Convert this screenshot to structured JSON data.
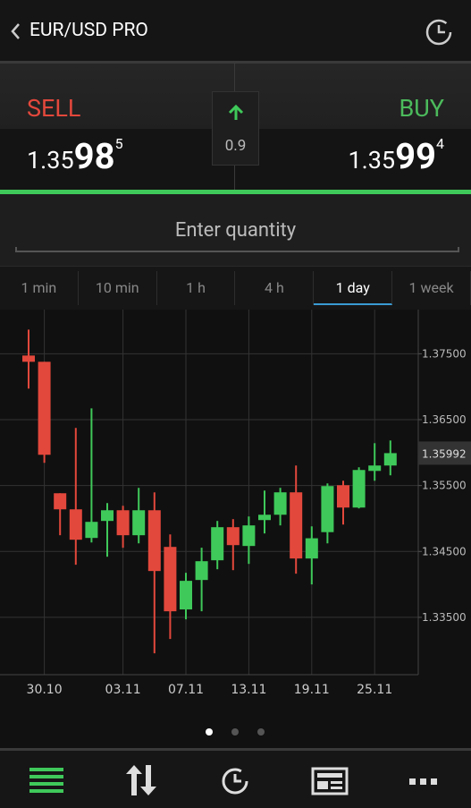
{
  "header": {
    "title": "EUR/USD PRO"
  },
  "quote": {
    "sell": {
      "label": "SELL",
      "price_prefix": "1.35",
      "price_big": "98",
      "price_sup": "5"
    },
    "buy": {
      "label": "BUY",
      "price_prefix": "1.35",
      "price_big": "99",
      "price_sup": "4"
    },
    "spread": "0.9"
  },
  "quantity": {
    "placeholder": "Enter quantity"
  },
  "tabs": {
    "items": [
      "1 min",
      "10 min",
      "1 h",
      "4 h",
      "1 day",
      "1 week"
    ],
    "active": 4
  },
  "chart_data": {
    "type": "candlestick",
    "categories": [
      null,
      "30.10",
      null,
      null,
      null,
      null,
      "03.11",
      null,
      null,
      null,
      "07.11",
      null,
      null,
      null,
      "13.11",
      null,
      null,
      null,
      "19.11",
      null,
      null,
      null,
      "25.11",
      null
    ],
    "open": [
      1.37473,
      1.37378,
      1.35383,
      1.35139,
      1.34705,
      1.34963,
      1.35125,
      1.34746,
      1.35125,
      1.34569,
      1.3362,
      1.34067,
      1.34366,
      1.34868,
      1.34583,
      1.34976,
      1.35057,
      1.35397,
      1.34393,
      1.34793,
      1.35505,
      1.35166,
      1.35722,
      1.35804
    ],
    "high": [
      1.37866,
      1.37378,
      1.35383,
      1.36374,
      1.36672,
      1.35234,
      1.35193,
      1.35465,
      1.35397,
      1.34759,
      1.34176,
      1.34556,
      1.34963,
      1.3499,
      1.35031,
      1.35424,
      1.35465,
      1.35804,
      1.34881,
      1.35533,
      1.35573,
      1.35777,
      1.36143,
      1.36184
    ],
    "low": [
      1.36971,
      1.35845,
      1.34746,
      1.34298,
      1.34637,
      1.3442,
      1.34556,
      1.34623,
      1.32955,
      1.33172,
      1.3347,
      1.33592,
      1.3423,
      1.34216,
      1.34311,
      1.34773,
      1.34895,
      1.34162,
      1.34,
      1.34623,
      1.34908,
      1.35153,
      1.35573,
      1.35655
    ],
    "close": [
      1.37378,
      1.35967,
      1.35139,
      1.34678,
      1.34949,
      1.35125,
      1.34746,
      1.35125,
      1.34203,
      1.33592,
      1.34054,
      1.34352,
      1.34868,
      1.34596,
      1.34895,
      1.35057,
      1.35397,
      1.34393,
      1.347,
      1.35492,
      1.35166,
      1.35736,
      1.35804,
      1.35992
    ],
    "up_color": "#3fc95a",
    "down_color": "#e3483c",
    "ylim": [
      1.3263,
      1.3817
    ],
    "yticks": [
      {
        "value": 1.335,
        "label": "1.33500"
      },
      {
        "value": 1.345,
        "label": "1.34500"
      },
      {
        "value": 1.355,
        "label": "1.35500"
      },
      {
        "value": 1.365,
        "label": "1.36500"
      },
      {
        "value": 1.375,
        "label": "1.37500"
      }
    ],
    "last_price": 1.35992,
    "grid": true
  }
}
